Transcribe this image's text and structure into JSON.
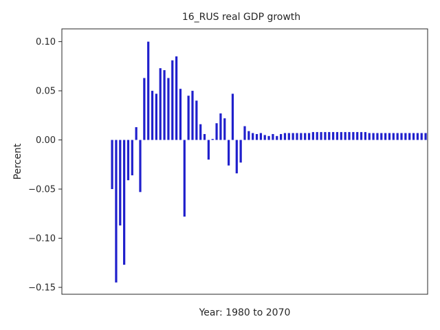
{
  "chart_data": {
    "type": "bar",
    "title": "16_RUS real GDP growth",
    "xlabel": "Year: 1980 to 2070",
    "ylabel": "Percent",
    "ylim": [
      -0.157,
      0.113
    ],
    "yticks": [
      0.1,
      0.05,
      0.0,
      -0.05,
      -0.1,
      -0.15
    ],
    "ytick_labels": [
      "0.10",
      "0.05",
      "0.00",
      "−0.05",
      "−0.10",
      "−0.15"
    ],
    "x": [
      1980,
      1981,
      1982,
      1983,
      1984,
      1985,
      1986,
      1987,
      1988,
      1989,
      1990,
      1991,
      1992,
      1993,
      1994,
      1995,
      1996,
      1997,
      1998,
      1999,
      2000,
      2001,
      2002,
      2003,
      2004,
      2005,
      2006,
      2007,
      2008,
      2009,
      2010,
      2011,
      2012,
      2013,
      2014,
      2015,
      2016,
      2017,
      2018,
      2019,
      2020,
      2021,
      2022,
      2023,
      2024,
      2025,
      2026,
      2027,
      2028,
      2029,
      2030,
      2031,
      2032,
      2033,
      2034,
      2035,
      2036,
      2037,
      2038,
      2039,
      2040,
      2041,
      2042,
      2043,
      2044,
      2045,
      2046,
      2047,
      2048,
      2049,
      2050,
      2051,
      2052,
      2053,
      2054,
      2055,
      2056,
      2057,
      2058,
      2059,
      2060,
      2061,
      2062,
      2063,
      2064,
      2065,
      2066,
      2067,
      2068,
      2069,
      2070
    ],
    "values": [
      null,
      null,
      null,
      null,
      null,
      null,
      null,
      null,
      null,
      null,
      null,
      null,
      -0.05,
      -0.145,
      -0.087,
      -0.127,
      -0.041,
      -0.036,
      0.013,
      -0.053,
      0.063,
      0.1,
      0.05,
      0.047,
      0.073,
      0.071,
      0.063,
      0.081,
      0.085,
      0.052,
      -0.078,
      0.045,
      0.05,
      0.04,
      0.016,
      0.006,
      -0.02,
      0.001,
      0.017,
      0.027,
      0.022,
      -0.026,
      0.047,
      -0.034,
      -0.023,
      0.014,
      0.009,
      0.007,
      0.006,
      0.007,
      0.005,
      0.004,
      0.006,
      0.004,
      0.006,
      0.007,
      0.007,
      0.007,
      0.007,
      0.007,
      0.007,
      0.007,
      0.008,
      0.008,
      0.008,
      0.008,
      0.008,
      0.008,
      0.008,
      0.008,
      0.008,
      0.008,
      0.008,
      0.008,
      0.008,
      0.008,
      0.007,
      0.007,
      0.007,
      0.007,
      0.007,
      0.007,
      0.007,
      0.007,
      0.007,
      0.007,
      0.007,
      0.007,
      0.007,
      0.007,
      0.007
    ],
    "bar_color": "#2020cc",
    "grid": false,
    "legend": "none"
  }
}
